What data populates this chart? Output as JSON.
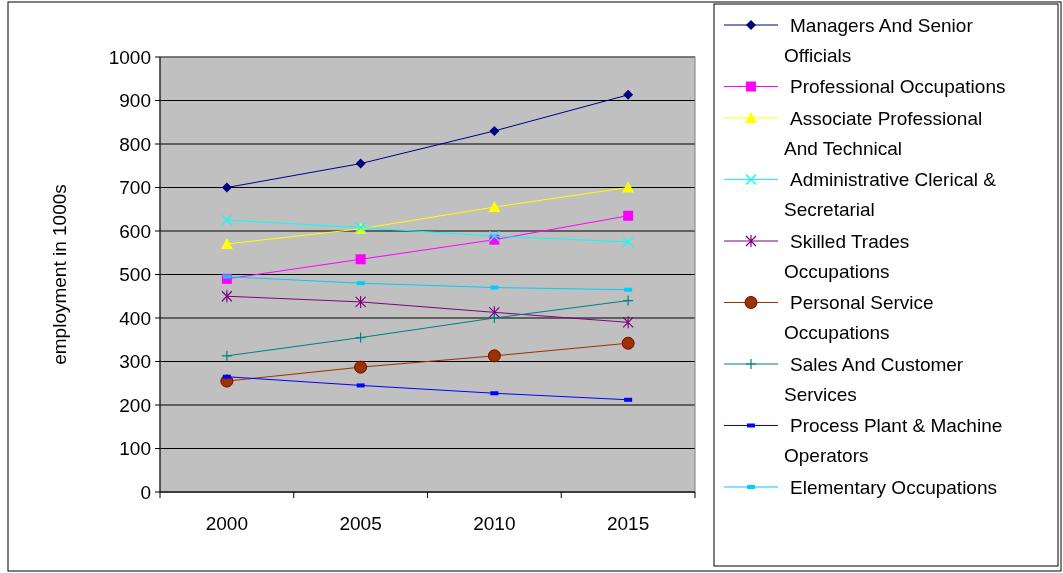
{
  "chart_data": {
    "type": "line",
    "ylabel": "employment in 1000s",
    "categories": [
      "2000",
      "2005",
      "2010",
      "2015"
    ],
    "series": [
      {
        "name": "Managers And Senior Officials",
        "color": "#000080",
        "marker": "diamond",
        "values": [
          700,
          755,
          830,
          913
        ]
      },
      {
        "name": "Professional Occupations",
        "color": "#ff00ff",
        "marker": "square",
        "values": [
          490,
          535,
          580,
          635
        ]
      },
      {
        "name": "Associate Professional And Technical",
        "color": "#ffff00",
        "marker": "triangle",
        "values": [
          570,
          605,
          655,
          700
        ]
      },
      {
        "name": "Administrative Clerical & Secretarial",
        "color": "#00ffff",
        "marker": "cross",
        "values": [
          625,
          608,
          588,
          575
        ]
      },
      {
        "name": "Skilled Trades Occupations",
        "color": "#800080",
        "marker": "cross",
        "values": [
          450,
          437,
          413,
          390
        ]
      },
      {
        "name": "Personal Service Occupations",
        "color": "#993300",
        "marker": "circle",
        "values": [
          255,
          287,
          313,
          342
        ]
      },
      {
        "name": "Sales And Customer Services",
        "color": "#008080",
        "marker": "plus",
        "values": [
          313,
          355,
          400,
          440
        ]
      },
      {
        "name": "Process Plant & Machine Operators",
        "color": "#0000ff",
        "marker": "square",
        "values": [
          265,
          245,
          227,
          212
        ]
      },
      {
        "name": "Elementary Occupations",
        "color": "#00ccff",
        "marker": "square",
        "values": [
          495,
          480,
          470,
          465
        ]
      }
    ],
    "ylim": [
      0,
      1000
    ],
    "yticks": [
      0,
      100,
      200,
      300,
      400,
      500,
      600,
      700,
      800,
      900,
      1000
    ],
    "grid": "y",
    "legend": "right"
  }
}
